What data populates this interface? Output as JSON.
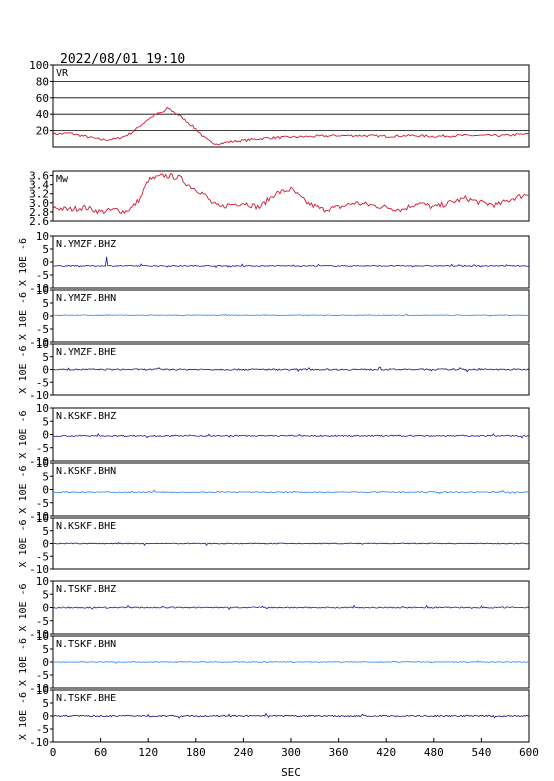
{
  "header": {
    "timestamp": "2022/08/01 19:10"
  },
  "xaxis": {
    "label": "SEC",
    "ticks": [
      "0",
      "60",
      "120",
      "180",
      "240",
      "300",
      "360",
      "420",
      "480",
      "540",
      "600"
    ]
  },
  "colors": {
    "vr": "#cc1a33",
    "mw": "#cc1a33",
    "bhz": "#1a1aa6",
    "bhn": "#2e86e6",
    "bhe": "#14147a"
  },
  "chart_data": {
    "type": "line",
    "x": {
      "min": 0,
      "max": 600
    },
    "panels": [
      {
        "label": "VR",
        "kind": "vr",
        "yticks": [
          "100",
          "80",
          "60",
          "40",
          "20"
        ],
        "ylim": [
          0,
          100
        ],
        "series": {
          "x": [
            0,
            10,
            20,
            30,
            40,
            50,
            60,
            70,
            80,
            90,
            100,
            110,
            120,
            130,
            140,
            145,
            150,
            160,
            170,
            180,
            190,
            200,
            210,
            220,
            240,
            270,
            300,
            330,
            360,
            390,
            420,
            450,
            480,
            510,
            540,
            570,
            600
          ],
          "y": [
            16,
            16,
            17,
            15,
            13,
            11,
            9,
            9,
            10,
            13,
            18,
            26,
            34,
            40,
            43,
            48,
            44,
            38,
            30,
            22,
            12,
            5,
            4,
            6,
            8,
            11,
            12,
            13,
            14,
            14,
            13,
            14,
            13,
            14,
            14,
            14,
            16
          ]
        }
      },
      {
        "label": "Mw",
        "kind": "mw",
        "yticks": [
          "3.6",
          "3.4",
          "3.2",
          "3.0",
          "2.8",
          "2.6"
        ],
        "ylim": [
          2.6,
          3.7
        ],
        "series": {
          "x": [
            0,
            20,
            40,
            60,
            80,
            90,
            100,
            110,
            115,
            120,
            130,
            140,
            150,
            160,
            170,
            180,
            190,
            200,
            210,
            220,
            240,
            260,
            280,
            300,
            320,
            340,
            360,
            380,
            400,
            420,
            440,
            460,
            480,
            500,
            520,
            540,
            560,
            580,
            600
          ],
          "y": [
            2.9,
            2.85,
            2.9,
            2.8,
            2.85,
            2.8,
            2.9,
            3.1,
            3.3,
            3.5,
            3.55,
            3.6,
            3.58,
            3.55,
            3.4,
            3.3,
            3.2,
            3.0,
            2.9,
            2.95,
            3.0,
            2.9,
            3.2,
            3.3,
            3.0,
            2.85,
            2.9,
            3.0,
            2.95,
            2.9,
            2.85,
            3.0,
            2.9,
            3.0,
            3.1,
            3.0,
            2.95,
            3.1,
            3.2
          ]
        }
      },
      {
        "label": "N.YMZF.BHZ",
        "kind": "bhz",
        "yticks": [
          "10",
          "5",
          "0",
          "-5",
          "-10"
        ],
        "ylim": [
          -10,
          10
        ],
        "baseline": -1.5,
        "amp": 0.4
      },
      {
        "label": "N.YMZF.BHN",
        "kind": "bhn",
        "yticks": [
          "10",
          "5",
          "0",
          "-5",
          "-10"
        ],
        "ylim": [
          -10,
          10
        ],
        "baseline": 0.3,
        "amp": 0.3
      },
      {
        "label": "N.YMZF.BHE",
        "kind": "bhe",
        "yticks": [
          "10",
          "5",
          "0",
          "-5",
          "-10"
        ],
        "ylim": [
          -10,
          10
        ],
        "baseline": 0,
        "amp": 0.6
      },
      {
        "label": "N.KSKF.BHZ",
        "kind": "bhz",
        "yticks": [
          "10",
          "5",
          "0",
          "-5",
          "-10"
        ],
        "ylim": [
          -10,
          10
        ],
        "baseline": -0.5,
        "amp": 0.5
      },
      {
        "label": "N.KSKF.BHN",
        "kind": "bhn",
        "yticks": [
          "10",
          "5",
          "0",
          "-5",
          "-10"
        ],
        "ylim": [
          -10,
          10
        ],
        "baseline": -1,
        "amp": 0.4
      },
      {
        "label": "N.KSKF.BHE",
        "kind": "bhe",
        "yticks": [
          "10",
          "5",
          "0",
          "-5",
          "-10"
        ],
        "ylim": [
          -10,
          10
        ],
        "baseline": 0,
        "amp": 0.4
      },
      {
        "label": "N.TSKF.BHZ",
        "kind": "bhz",
        "yticks": [
          "10",
          "5",
          "0",
          "-5",
          "-10"
        ],
        "ylim": [
          -10,
          10
        ],
        "baseline": 0,
        "amp": 0.5
      },
      {
        "label": "N.TSKF.BHN",
        "kind": "bhn",
        "yticks": [
          "10",
          "5",
          "0",
          "-5",
          "-10"
        ],
        "ylim": [
          -10,
          10
        ],
        "baseline": 0,
        "amp": 0.3
      },
      {
        "label": "N.TSKF.BHE",
        "kind": "bhe",
        "yticks": [
          "10",
          "5",
          "0",
          "-5",
          "-10"
        ],
        "ylim": [
          -10,
          10
        ],
        "baseline": 0,
        "amp": 0.6
      }
    ],
    "wave_axis_label": "X 10E -6"
  }
}
